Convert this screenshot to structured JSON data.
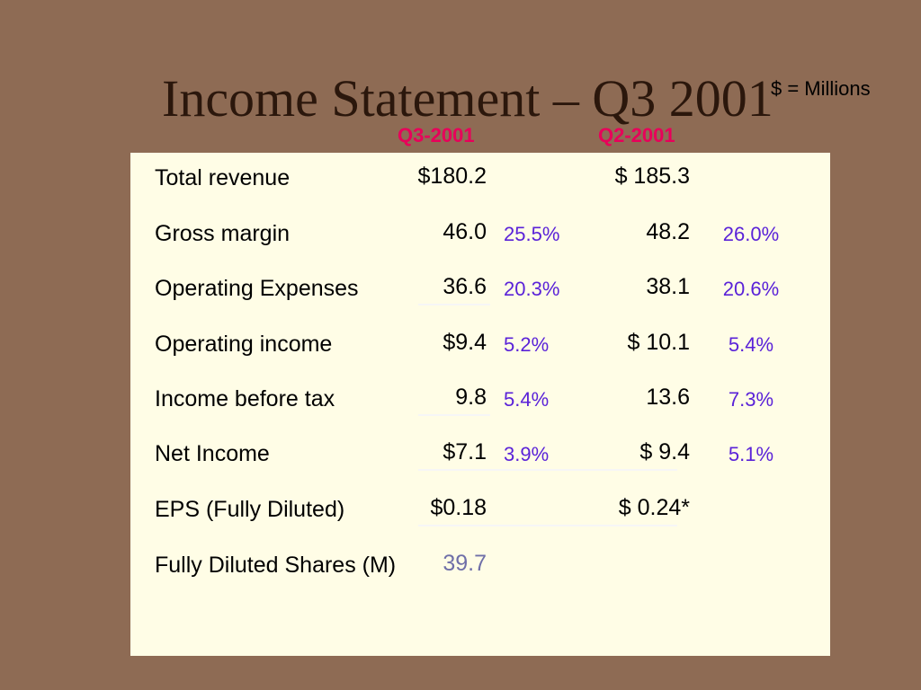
{
  "title": "Income Statement – Q3 2001",
  "units_note": "$ = Millions",
  "columns": {
    "current": "Q3-2001",
    "prior": "Q2-2001"
  },
  "rows": [
    {
      "label": "Total revenue",
      "q3": "$180.2",
      "q3_pct": "",
      "q2": "$ 185.3",
      "q2_pct": ""
    },
    {
      "label": "Gross margin",
      "q3": "46.0",
      "q3_pct": "25.5%",
      "q2": "48.2",
      "q2_pct": "26.0%"
    },
    {
      "label": "Operating Expenses",
      "q3": "36.6",
      "q3_pct": "20.3%",
      "q2": "38.1",
      "q2_pct": "20.6%"
    },
    {
      "label": "Operating income",
      "q3": "$9.4",
      "q3_pct": "5.2%",
      "q2": "$ 10.1",
      "q2_pct": "5.4%"
    },
    {
      "label": "Income before tax",
      "q3": "9.8",
      "q3_pct": "5.4%",
      "q2": "13.6",
      "q2_pct": "7.3%"
    },
    {
      "label": "Net Income",
      "q3": "$7.1",
      "q3_pct": "3.9%",
      "q2": "$ 9.4",
      "q2_pct": "5.1%"
    },
    {
      "label": "EPS (Fully Diluted)",
      "q3": "$0.18",
      "q3_pct": "",
      "q2": "$ 0.24*",
      "q2_pct": ""
    },
    {
      "label": "Fully Diluted Shares (M)",
      "q3": "39.7",
      "q3_pct": "",
      "q2": "",
      "q2_pct": ""
    }
  ],
  "colors": {
    "background": "#8e6b54",
    "panel": "#fffde6",
    "header": "#e8005a",
    "percent": "#5a22d8",
    "title": "#2b170c"
  }
}
